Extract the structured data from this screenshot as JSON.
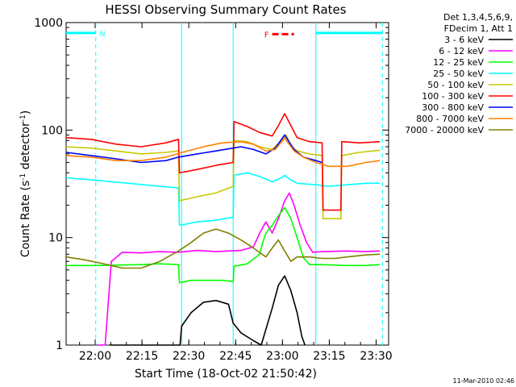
{
  "chart_data": {
    "type": "line",
    "title": "HESSI Observing Summary Count Rates",
    "xlabel": "Start Time (18-Oct-02 21:50:42)",
    "ylabel_main": "Count Rate (s",
    "ylabel_sup1": "-1",
    "ylabel_mid": " detector",
    "ylabel_sup2": "-1",
    "ylabel_end": ")",
    "x_unit": "minutes after 21:50:42",
    "xlim": [
      0,
      103.3
    ],
    "ylim": [
      1,
      1000
    ],
    "yscale": "log",
    "x_ticks": [
      {
        "label": "22:00",
        "value": 9.3
      },
      {
        "label": "22:15",
        "value": 24.3
      },
      {
        "label": "22:30",
        "value": 39.3
      },
      {
        "label": "22:45",
        "value": 54.3
      },
      {
        "label": "23:00",
        "value": 69.3
      },
      {
        "label": "23:15",
        "value": 84.3
      },
      {
        "label": "23:30",
        "value": 99.3
      }
    ],
    "y_ticks": [
      {
        "label": "1",
        "value": 1
      },
      {
        "label": "10",
        "value": 10
      },
      {
        "label": "100",
        "value": 100
      },
      {
        "label": "1000",
        "value": 1000
      }
    ],
    "legend": {
      "header": [
        "Det 1,3,4,5,6,9,",
        "FDecim 1, Att 1"
      ],
      "position": "right"
    },
    "series": [
      {
        "name": "3 - 6 keV",
        "color": "#000000",
        "x": [
          14.0,
          36.5,
          37.0,
          40.0,
          44.0,
          48.0,
          52.0,
          53.5,
          56.0,
          60.0,
          62.5,
          64.0,
          66.0,
          68.0,
          70.0,
          72.0,
          74.0,
          75.5,
          76.5
        ],
        "y": [
          1.0,
          1.0,
          1.5,
          2.0,
          2.5,
          2.6,
          2.4,
          1.6,
          1.3,
          1.1,
          1.0,
          1.4,
          2.2,
          3.6,
          4.4,
          3.2,
          2.0,
          1.2,
          1.0
        ]
      },
      {
        "name": "6 - 12 keV",
        "color": "#ff00ff",
        "x": [
          10.0,
          12.5,
          14.5,
          18.0,
          24.0,
          30.0,
          36.0,
          42.0,
          48.0,
          56.0,
          60.0,
          62.0,
          64.0,
          66.0,
          68.0,
          70.0,
          71.5,
          73.0,
          75.0,
          77.0,
          79.0,
          82.0,
          90.0,
          96.0,
          100.5
        ],
        "y": [
          1.0,
          1.0,
          6.0,
          7.3,
          7.2,
          7.4,
          7.3,
          7.6,
          7.4,
          7.6,
          8.2,
          11.0,
          14.0,
          11.0,
          15.0,
          22.0,
          26.0,
          20.0,
          13.0,
          9.0,
          7.3,
          7.4,
          7.5,
          7.4,
          7.5
        ]
      },
      {
        "name": "12 - 25 keV",
        "color": "#00ff00",
        "x": [
          0.0,
          10.0,
          24.0,
          30.0,
          36.0,
          36.3,
          40.0,
          50.0,
          53.5,
          53.8,
          58.0,
          62.0,
          63.0,
          64.0,
          66.0,
          68.0,
          70.0,
          72.0,
          74.0,
          76.0,
          78.0,
          82.0,
          90.0,
          96.0,
          100.5
        ],
        "y": [
          5.5,
          5.5,
          5.6,
          5.7,
          5.6,
          3.8,
          4.0,
          4.0,
          3.9,
          5.4,
          5.7,
          7.0,
          9.0,
          11.0,
          13.0,
          16.0,
          19.0,
          15.0,
          10.0,
          6.5,
          5.6,
          5.6,
          5.5,
          5.5,
          5.6
        ]
      },
      {
        "name": "25 - 50 keV",
        "color": "#00ffff",
        "x": [
          0.0,
          10.0,
          20.0,
          30.0,
          36.0,
          36.3,
          42.0,
          48.0,
          53.5,
          53.8,
          58.0,
          62.0,
          66.0,
          69.0,
          70.0,
          71.5,
          74.0,
          80.0,
          84.0,
          90.0,
          96.0,
          100.5
        ],
        "y": [
          36.0,
          34.0,
          32.0,
          30.0,
          29.0,
          13.0,
          14.0,
          14.5,
          15.5,
          38.0,
          40.0,
          37.0,
          33.0,
          36.0,
          38.0,
          35.0,
          32.0,
          31.0,
          30.0,
          31.0,
          32.0,
          32.0
        ]
      },
      {
        "name": "50 - 100 keV",
        "color": "#c8c800",
        "x": [
          0.0,
          8.0,
          16.0,
          24.0,
          32.0,
          36.0,
          36.3,
          42.0,
          48.0,
          53.5,
          53.8,
          58.0,
          62.0,
          66.0,
          69.0,
          70.5,
          72.0,
          74.0,
          78.0,
          82.0,
          82.3,
          88.0,
          88.3,
          94.0,
          100.5
        ],
        "y": [
          70.0,
          68.0,
          64.0,
          60.0,
          62.0,
          64.0,
          22.0,
          24.0,
          26.0,
          30.0,
          80.0,
          78.0,
          70.0,
          66.0,
          80.0,
          90.0,
          72.0,
          64.0,
          60.0,
          58.0,
          15.0,
          15.0,
          58.0,
          62.0,
          65.0
        ]
      },
      {
        "name": "100 - 300 keV",
        "color": "#ff0000",
        "x": [
          0.0,
          8.0,
          16.0,
          24.0,
          32.0,
          36.0,
          36.3,
          42.0,
          48.0,
          53.5,
          53.8,
          58.0,
          62.0,
          66.0,
          68.0,
          70.0,
          72.0,
          74.0,
          78.0,
          82.0,
          82.3,
          88.0,
          88.3,
          94.0,
          100.5
        ],
        "y": [
          85.0,
          82.0,
          74.0,
          70.0,
          76.0,
          82.0,
          40.0,
          43.0,
          47.0,
          50.0,
          120.0,
          108.0,
          95.0,
          88.0,
          110.0,
          142.0,
          110.0,
          85.0,
          78.0,
          76.0,
          18.0,
          18.0,
          78.0,
          76.0,
          78.0
        ]
      },
      {
        "name": "300 - 800 keV",
        "color": "#0000ff",
        "x": [
          0.0,
          8.0,
          16.0,
          24.0,
          32.0,
          36.0,
          42.0,
          48.0,
          53.5,
          56.0,
          60.0,
          64.0,
          67.0,
          70.0,
          73.0,
          76.0,
          80.0,
          82.0
        ],
        "y": [
          62.0,
          58.0,
          54.0,
          50.0,
          52.0,
          56.0,
          60.0,
          64.0,
          68.0,
          70.0,
          66.0,
          60.0,
          68.0,
          90.0,
          66.0,
          56.0,
          52.0,
          50.0
        ]
      },
      {
        "name": "800 - 7000 keV",
        "color": "#ff8000",
        "x": [
          0.0,
          8.0,
          16.0,
          24.0,
          32.0,
          38.0,
          44.0,
          50.0,
          56.0,
          60.0,
          64.0,
          67.0,
          70.0,
          73.0,
          76.0,
          80.0,
          84.0,
          90.0,
          96.0,
          100.5
        ],
        "y": [
          58.0,
          56.0,
          52.0,
          52.0,
          56.0,
          63.0,
          70.0,
          76.0,
          78.0,
          74.0,
          64.0,
          66.0,
          84.0,
          64.0,
          56.0,
          50.0,
          46.0,
          46.0,
          50.0,
          52.0
        ]
      },
      {
        "name": "7000 - 20000 keV",
        "color": "#808000",
        "x": [
          0.0,
          6.0,
          12.0,
          18.0,
          24.0,
          30.0,
          36.0,
          40.0,
          44.0,
          48.0,
          52.0,
          56.0,
          60.0,
          64.0,
          66.0,
          68.0,
          70.0,
          72.0,
          74.0,
          78.0,
          82.0,
          86.0,
          90.0,
          96.0,
          100.5
        ],
        "y": [
          6.6,
          6.2,
          5.7,
          5.2,
          5.2,
          6.0,
          7.5,
          9.0,
          11.0,
          12.0,
          11.0,
          9.5,
          8.0,
          6.6,
          8.0,
          9.5,
          7.5,
          6.0,
          6.6,
          6.6,
          6.4,
          6.4,
          6.6,
          6.9,
          7.0
        ]
      }
    ],
    "bars": [
      {
        "label": "N",
        "color": "#00ffff",
        "x": [
          0.0,
          9.5
        ],
        "y": 800
      },
      {
        "label": "",
        "color": "#00ffff",
        "x": [
          80.0,
          101.3
        ],
        "y": 800
      }
    ],
    "flag": {
      "label": "F",
      "color": "#ff0000",
      "x": [
        66.0,
        73.0
      ],
      "y": 780
    },
    "vlines": [
      {
        "color": "#00ffff",
        "style": "dashed",
        "x": 9.5
      },
      {
        "color": "#00ffff",
        "style": "solid",
        "x": 37.0
      },
      {
        "color": "#00ffff",
        "style": "solid",
        "x": 53.5
      },
      {
        "color": "#00ffff",
        "style": "solid",
        "x": 80.0
      },
      {
        "color": "#00ffff",
        "style": "dashed",
        "x": 101.3
      }
    ]
  },
  "footer": {
    "timestamp": "11-Mar-2010 02:46"
  }
}
